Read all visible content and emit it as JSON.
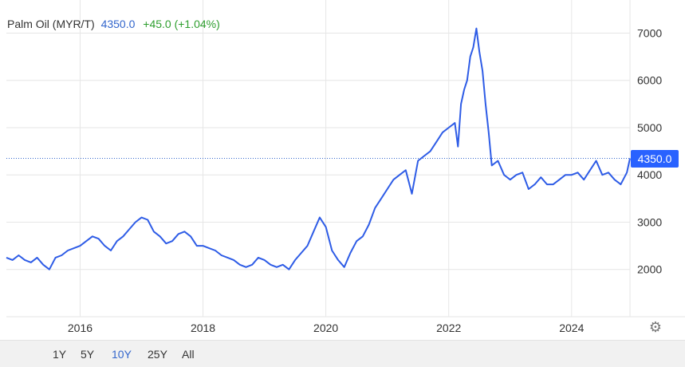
{
  "legend": {
    "title": "Palm Oil (MYR/T)",
    "value": "4350.0",
    "change": "+45.0 (+1.04%)"
  },
  "price_tag": "4350.0",
  "range_buttons": [
    {
      "label": "1Y"
    },
    {
      "label": "5Y"
    },
    {
      "label": "10Y",
      "active": true
    },
    {
      "label": "25Y"
    },
    {
      "label": "All"
    }
  ],
  "colors": {
    "line": "#2e5ce6",
    "accent": "#3366cc",
    "positive": "#2e9e2e",
    "tag": "#2962ff"
  },
  "settings_icon": "gear-icon",
  "chart_data": {
    "type": "line",
    "title": "Palm Oil (MYR/T)",
    "xlabel": "",
    "ylabel": "",
    "x_ticks": [
      "2016",
      "2018",
      "2020",
      "2022",
      "2024"
    ],
    "y_ticks": [
      "2000",
      "3000",
      "4000",
      "5000",
      "6000",
      "7000"
    ],
    "xlim": [
      2014.8,
      2024.95
    ],
    "ylim": [
      1000,
      7700
    ],
    "grid": true,
    "current_value": 4350.0,
    "series": [
      {
        "x": [
          2014.8,
          2014.9,
          2015.0,
          2015.1,
          2015.2,
          2015.3,
          2015.4,
          2015.5,
          2015.6,
          2015.7,
          2015.8,
          2015.9,
          2016.0,
          2016.1,
          2016.2,
          2016.3,
          2016.4,
          2016.5,
          2016.6,
          2016.7,
          2016.8,
          2016.9,
          2017.0,
          2017.1,
          2017.2,
          2017.3,
          2017.4,
          2017.5,
          2017.6,
          2017.7,
          2017.8,
          2017.9,
          2018.0,
          2018.1,
          2018.2,
          2018.3,
          2018.4,
          2018.5,
          2018.6,
          2018.7,
          2018.8,
          2018.9,
          2019.0,
          2019.1,
          2019.2,
          2019.3,
          2019.4,
          2019.5,
          2019.6,
          2019.7,
          2019.8,
          2019.9,
          2020.0,
          2020.1,
          2020.2,
          2020.3,
          2020.4,
          2020.5,
          2020.6,
          2020.7,
          2020.8,
          2020.9,
          2021.0,
          2021.1,
          2021.2,
          2021.3,
          2021.4,
          2021.5,
          2021.6,
          2021.7,
          2021.8,
          2021.9,
          2022.0,
          2022.1,
          2022.15,
          2022.2,
          2022.25,
          2022.3,
          2022.35,
          2022.4,
          2022.45,
          2022.5,
          2022.55,
          2022.6,
          2022.65,
          2022.7,
          2022.8,
          2022.9,
          2023.0,
          2023.1,
          2023.2,
          2023.3,
          2023.4,
          2023.5,
          2023.6,
          2023.7,
          2023.8,
          2023.9,
          2024.0,
          2024.1,
          2024.2,
          2024.3,
          2024.4,
          2024.5,
          2024.6,
          2024.7,
          2024.8,
          2024.9,
          2024.95
        ],
        "values": [
          2250,
          2200,
          2300,
          2200,
          2150,
          2250,
          2100,
          2000,
          2250,
          2300,
          2400,
          2450,
          2500,
          2600,
          2700,
          2650,
          2500,
          2400,
          2600,
          2700,
          2850,
          3000,
          3100,
          3050,
          2800,
          2700,
          2550,
          2600,
          2750,
          2800,
          2700,
          2500,
          2500,
          2450,
          2400,
          2300,
          2250,
          2200,
          2100,
          2050,
          2100,
          2250,
          2200,
          2100,
          2050,
          2100,
          2000,
          2200,
          2350,
          2500,
          2800,
          3100,
          2900,
          2400,
          2200,
          2050,
          2350,
          2600,
          2700,
          2950,
          3300,
          3500,
          3700,
          3900,
          4000,
          4100,
          3600,
          4300,
          4400,
          4500,
          4700,
          4900,
          5000,
          5100,
          4600,
          5500,
          5800,
          6000,
          6500,
          6700,
          7100,
          6600,
          6200,
          5500,
          4900,
          4200,
          4300,
          4000,
          3900,
          4000,
          4050,
          3700,
          3800,
          3950,
          3800,
          3800,
          3900,
          4000,
          4000,
          4050,
          3900,
          4100,
          4300,
          4000,
          4050,
          3900,
          3800,
          4050,
          4350
        ]
      }
    ]
  }
}
